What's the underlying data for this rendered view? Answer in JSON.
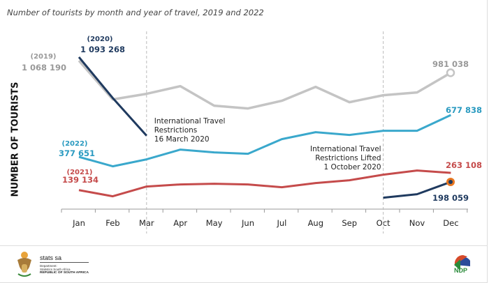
{
  "chart_data": {
    "type": "line",
    "title": "Number of tourists by month and year of travel, 2019 and 2022",
    "ylabel": "NUMBER OF TOURISTS",
    "xlabel": "",
    "categories": [
      "Jan",
      "Feb",
      "Mar",
      "Apr",
      "May",
      "Jun",
      "Jul",
      "Aug",
      "Sep",
      "Oct",
      "Nov",
      "Dec"
    ],
    "ylim": [
      0,
      1500000
    ],
    "grid": false,
    "series": [
      {
        "name": "(2019)",
        "color": "#c4c4c4",
        "values": [
          1068190,
          790000,
          830000,
          885000,
          745000,
          725000,
          780000,
          880000,
          770000,
          820000,
          840000,
          981038
        ],
        "labels": {
          "first": "1 068 190",
          "last": "981 038"
        }
      },
      {
        "name": "(2020)",
        "color": "#1f3a5f",
        "values": [
          1093268,
          800000,
          530000,
          null,
          null,
          null,
          null,
          null,
          null,
          85000,
          110000,
          198059
        ],
        "labels": {
          "first": "1 093 268",
          "last": "198 059"
        }
      },
      {
        "name": "(2021)",
        "color": "#c54b4b",
        "values": [
          139134,
          95000,
          165000,
          180000,
          185000,
          180000,
          160000,
          190000,
          210000,
          250000,
          280000,
          263108
        ],
        "labels": {
          "first": "139 134",
          "last": "263 108"
        }
      },
      {
        "name": "(2022)",
        "color": "#3aa8cc",
        "values": [
          377651,
          310000,
          360000,
          430000,
          410000,
          400000,
          505000,
          555000,
          535000,
          565000,
          565000,
          677838
        ],
        "labels": {
          "first": "377 651",
          "last": "677 838"
        }
      }
    ],
    "annotations": [
      {
        "month": "Mar",
        "lines": [
          "International Travel",
          "Restrictions",
          "16 March 2020"
        ]
      },
      {
        "month": "Oct",
        "lines": [
          "International Travel",
          "Restrictions Lifted",
          "1 October 2020"
        ]
      }
    ]
  },
  "footer": {
    "brand": "stats sa",
    "dept1": "Department:",
    "dept2": "Statistics South Africa",
    "country": "REPUBLIC OF SOUTH AFRICA",
    "ndp": "NDP"
  }
}
